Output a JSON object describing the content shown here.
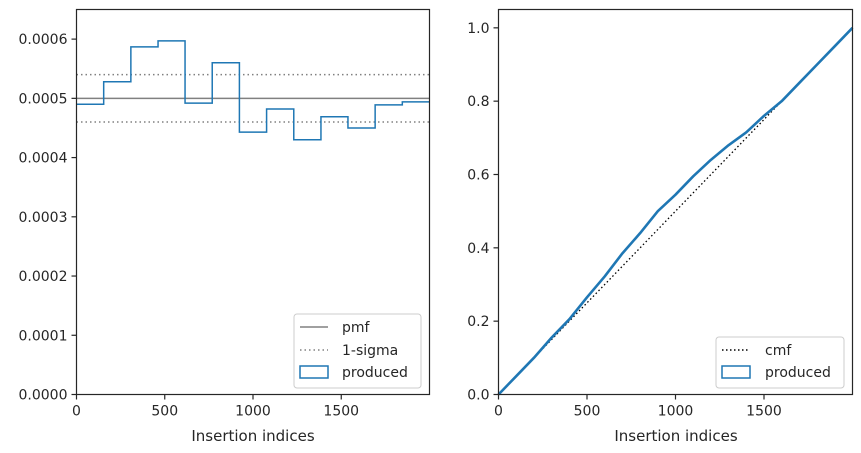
{
  "chart_data": [
    {
      "type": "line",
      "xlabel": "Insertion indices",
      "ylabel": "",
      "xlim": [
        0,
        2000
      ],
      "ylim": [
        0,
        0.00065
      ],
      "xticks": [
        0,
        500,
        1000,
        1500
      ],
      "yticks": [
        0,
        0.0001,
        0.0002,
        0.0003,
        0.0004,
        0.0005,
        0.0006
      ],
      "ytick_labels": [
        "0.0000",
        "0.0001",
        "0.0002",
        "0.0003",
        "0.0004",
        "0.0005",
        "0.0006"
      ],
      "grid": false,
      "legend_position": "lower-right",
      "series": [
        {
          "name": "pmf",
          "style": "solid",
          "color": "#808080",
          "value": 0.0005
        },
        {
          "name": "1-sigma",
          "style": "dotted",
          "color": "#808080",
          "values": [
            0.00046,
            0.00054
          ]
        },
        {
          "name": "produced",
          "style": "step",
          "color": "#1f77b4",
          "bin_edges": [
            0,
            154,
            308,
            462,
            615,
            769,
            923,
            1077,
            1231,
            1385,
            1538,
            1692,
            1846,
            2000
          ],
          "values": [
            0.00049,
            0.000528,
            0.000587,
            0.000597,
            0.000492,
            0.00056,
            0.000443,
            0.000482,
            0.00043,
            0.000469,
            0.00045,
            0.000489,
            0.000494
          ]
        }
      ]
    },
    {
      "type": "line",
      "xlabel": "Insertion indices",
      "ylabel": "",
      "xlim": [
        0,
        2000
      ],
      "ylim": [
        0,
        1.05
      ],
      "xticks": [
        0,
        500,
        1000,
        1500
      ],
      "yticks": [
        0,
        0.2,
        0.4,
        0.6,
        0.8,
        1.0
      ],
      "ytick_labels": [
        "0.0",
        "0.2",
        "0.4",
        "0.6",
        "0.8",
        "1.0"
      ],
      "grid": false,
      "legend_position": "lower-right",
      "series": [
        {
          "name": "cmf",
          "style": "dotted",
          "color": "#000000",
          "x": [
            0,
            2000
          ],
          "y": [
            0,
            1.0
          ]
        },
        {
          "name": "produced",
          "style": "solid",
          "color": "#1f77b4",
          "x": [
            0,
            100,
            200,
            300,
            400,
            500,
            600,
            700,
            800,
            900,
            1000,
            1100,
            1200,
            1300,
            1400,
            1500,
            1600,
            1700,
            1800,
            1900,
            2000
          ],
          "y": [
            0,
            0.05,
            0.1,
            0.155,
            0.205,
            0.265,
            0.322,
            0.385,
            0.44,
            0.5,
            0.545,
            0.595,
            0.64,
            0.68,
            0.715,
            0.76,
            0.8,
            0.85,
            0.9,
            0.95,
            1.0
          ]
        }
      ]
    }
  ]
}
